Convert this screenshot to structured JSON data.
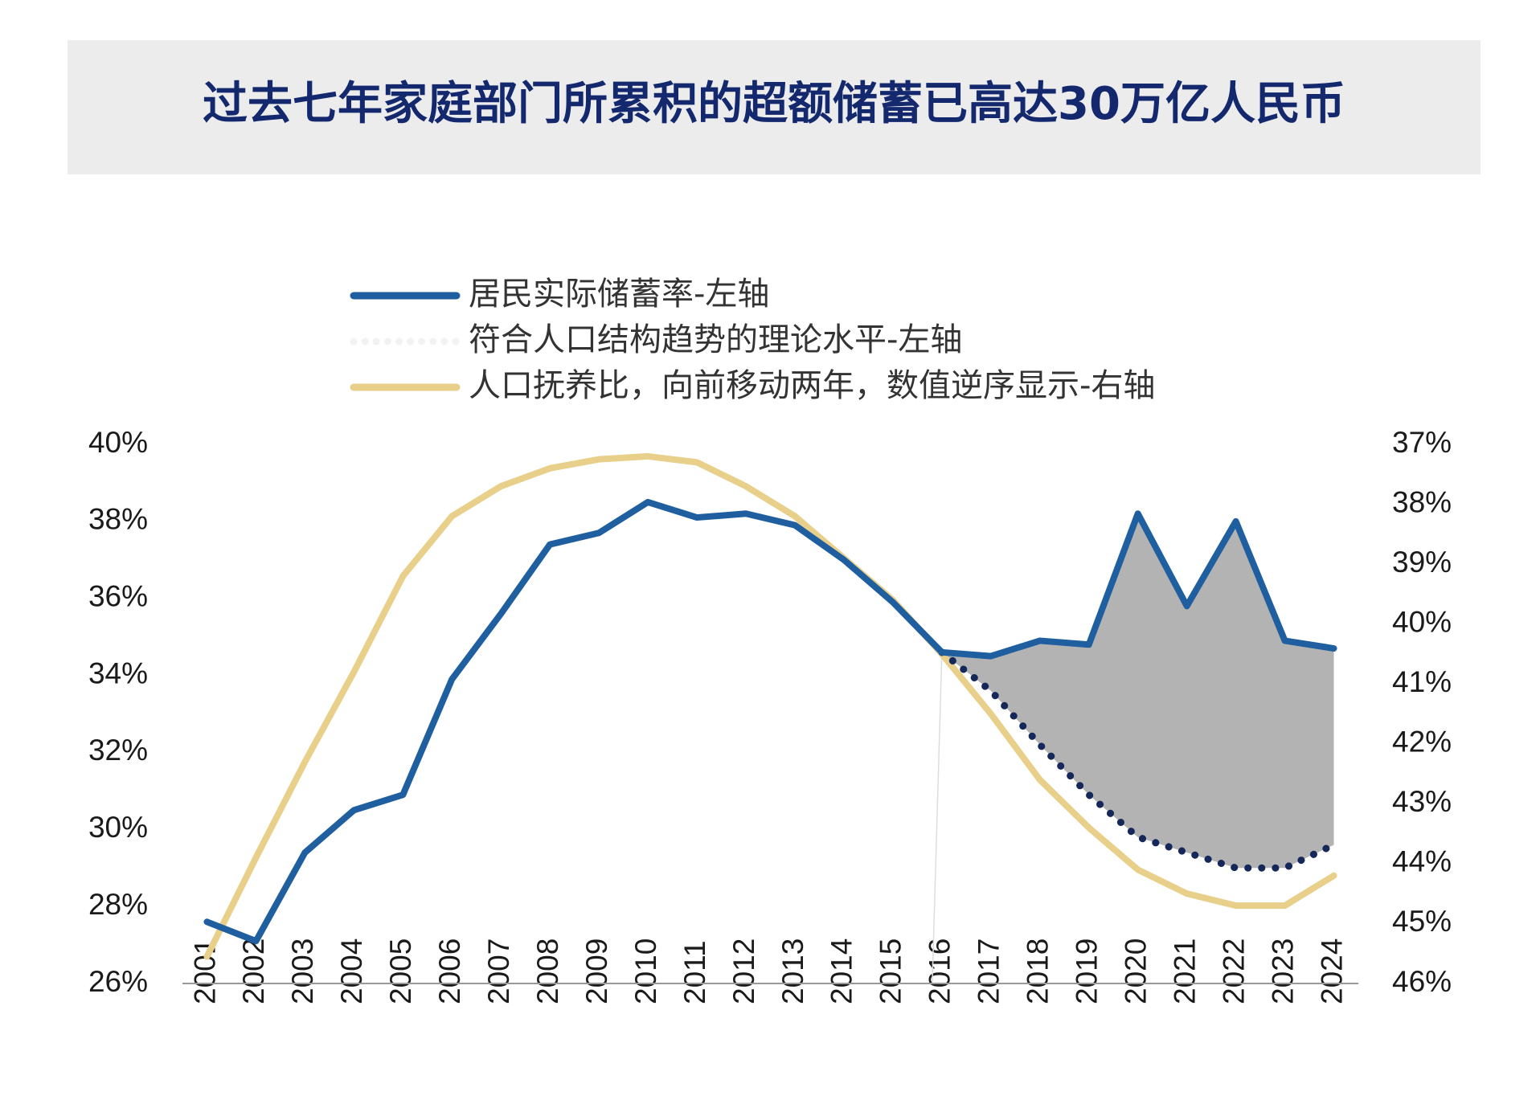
{
  "chart_data": {
    "type": "line",
    "title": "过去七年家庭部门所累积的超额储蓄已高达30万亿人民币",
    "categories": [
      "2001",
      "2002",
      "2003",
      "2004",
      "2005",
      "2006",
      "2007",
      "2008",
      "2009",
      "2010",
      "2011",
      "2012",
      "2013",
      "2014",
      "2015",
      "2016",
      "2017",
      "2018",
      "2019",
      "2020",
      "2021",
      "2022",
      "2023",
      "2024"
    ],
    "series": [
      {
        "name": "居民实际储蓄率-左轴",
        "color": "#1f5fa0",
        "axis": "y",
        "values": [
          27.6,
          27.1,
          29.4,
          30.5,
          30.9,
          33.9,
          35.6,
          37.4,
          37.7,
          38.5,
          38.1,
          38.2,
          37.9,
          37.0,
          35.9,
          34.6,
          34.5,
          34.9,
          34.8,
          38.2,
          35.8,
          38.0,
          34.9,
          34.7
        ]
      },
      {
        "name": "符合人口结构趋势的理论水平-左轴",
        "color": "#16275a",
        "axis": "y",
        "style": "dotted",
        "values": [
          null,
          null,
          null,
          null,
          null,
          null,
          null,
          null,
          null,
          null,
          null,
          null,
          null,
          null,
          null,
          34.6,
          33.6,
          32.2,
          30.9,
          29.8,
          29.4,
          29.0,
          29.0,
          29.6
        ]
      },
      {
        "name": "人口抚养比，向前移动两年，数值逆序显示-右轴",
        "color": "#e8cf8a",
        "axis": "y2",
        "values": [
          45.55,
          43.9,
          42.3,
          40.8,
          39.2,
          38.2,
          37.7,
          37.4,
          37.25,
          37.2,
          37.3,
          37.7,
          38.2,
          38.9,
          39.6,
          40.5,
          41.5,
          42.6,
          43.4,
          44.1,
          44.5,
          44.7,
          44.7,
          44.2
        ]
      }
    ],
    "gap_fill": "#b3b3b3",
    "ylim": [
      26,
      40
    ],
    "yticks": [
      {
        "value": 26,
        "label": "26%"
      },
      {
        "value": 28,
        "label": "28%"
      },
      {
        "value": 30,
        "label": "30%"
      },
      {
        "value": 32,
        "label": "32%"
      },
      {
        "value": 34,
        "label": "34%"
      },
      {
        "value": 36,
        "label": "36%"
      },
      {
        "value": 38,
        "label": "38%"
      },
      {
        "value": 40,
        "label": "40%"
      }
    ],
    "y2lim": [
      46,
      37
    ],
    "y2ticks": [
      {
        "value": 37,
        "label": "37%"
      },
      {
        "value": 38,
        "label": "38%"
      },
      {
        "value": 39,
        "label": "39%"
      },
      {
        "value": 40,
        "label": "40%"
      },
      {
        "value": 41,
        "label": "41%"
      },
      {
        "value": 42,
        "label": "42%"
      },
      {
        "value": 43,
        "label": "43%"
      },
      {
        "value": 44,
        "label": "44%"
      },
      {
        "value": 45,
        "label": "45%"
      },
      {
        "value": 46,
        "label": "46%"
      }
    ],
    "grid": false
  }
}
